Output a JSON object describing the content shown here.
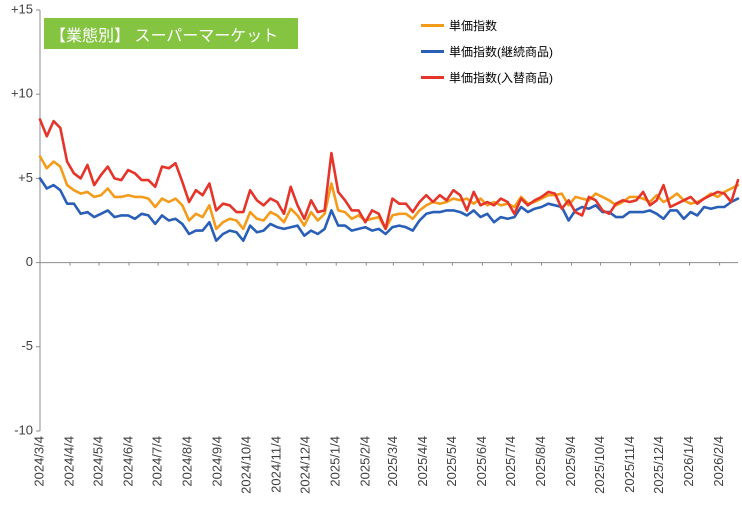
{
  "chart_data": {
    "type": "line",
    "title": "【業態別】 スーパーマーケット",
    "title_box_color": "#84C441",
    "legend": "top-right",
    "grid": false,
    "x_axis_crosses_at": 0,
    "ylim": [
      -10,
      15
    ],
    "y_tick_labels": [
      "+15",
      "+10",
      "+5",
      "0",
      "-5",
      "-10"
    ],
    "xlim": [
      "2024/3/4",
      "2026/2/23"
    ],
    "x_tick_labels": [
      "2024/3/4",
      "2024/4/4",
      "2024/5/4",
      "2024/6/4",
      "2024/7/4",
      "2024/8/4",
      "2024/9/4",
      "2024/10/4",
      "2024/11/4",
      "2024/12/4",
      "2025/1/4",
      "2025/2/4",
      "2025/3/4",
      "2025/4/4",
      "2025/5/4",
      "2025/6/4",
      "2025/7/4",
      "2025/8/4",
      "2025/9/4",
      "2025/10/4",
      "2025/11/4",
      "2025/12/4",
      "2026/1/4",
      "2026/2/4"
    ],
    "x": [
      "2024/3/4",
      "2024/3/11",
      "2024/3/18",
      "2024/3/25",
      "2024/4/1",
      "2024/4/8",
      "2024/4/15",
      "2024/4/22",
      "2024/4/29",
      "2024/5/6",
      "2024/5/13",
      "2024/5/20",
      "2024/5/27",
      "2024/6/3",
      "2024/6/10",
      "2024/6/17",
      "2024/6/24",
      "2024/7/1",
      "2024/7/8",
      "2024/7/15",
      "2024/7/22",
      "2024/7/29",
      "2024/8/5",
      "2024/8/12",
      "2024/8/19",
      "2024/8/26",
      "2024/9/2",
      "2024/9/9",
      "2024/9/16",
      "2024/9/23",
      "2024/9/30",
      "2024/10/7",
      "2024/10/14",
      "2024/10/21",
      "2024/10/28",
      "2024/11/4",
      "2024/11/11",
      "2024/11/18",
      "2024/11/25",
      "2024/12/2",
      "2024/12/9",
      "2024/12/16",
      "2024/12/23",
      "2024/12/30",
      "2025/1/6",
      "2025/1/13",
      "2025/1/20",
      "2025/1/27",
      "2025/2/3",
      "2025/2/10",
      "2025/2/17",
      "2025/2/24",
      "2025/3/3",
      "2025/3/10",
      "2025/3/17",
      "2025/3/24",
      "2025/3/31",
      "2025/4/7",
      "2025/4/14",
      "2025/4/21",
      "2025/4/28",
      "2025/5/5",
      "2025/5/12",
      "2025/5/19",
      "2025/5/26",
      "2025/6/2",
      "2025/6/9",
      "2025/6/16",
      "2025/6/23",
      "2025/6/30",
      "2025/7/7",
      "2025/7/14",
      "2025/7/21",
      "2025/7/28",
      "2025/8/4",
      "2025/8/11",
      "2025/8/18",
      "2025/8/25",
      "2025/9/1",
      "2025/9/8",
      "2025/9/15",
      "2025/9/22",
      "2025/9/29",
      "2025/10/6",
      "2025/10/13",
      "2025/10/20",
      "2025/10/27",
      "2025/11/3",
      "2025/11/10",
      "2025/11/17",
      "2025/11/24",
      "2025/12/1",
      "2025/12/8",
      "2025/12/15",
      "2025/12/22",
      "2025/12/29",
      "2026/1/5",
      "2026/1/12",
      "2026/1/19",
      "2026/1/26",
      "2026/2/2",
      "2026/2/9",
      "2026/2/16",
      "2026/2/23"
    ],
    "series": [
      {
        "name": "単価指数",
        "color": "#F39C1B",
        "values": [
          6.3,
          5.6,
          6.0,
          5.7,
          4.6,
          4.3,
          4.1,
          4.2,
          3.9,
          4.0,
          4.4,
          3.9,
          3.9,
          4.0,
          3.9,
          3.9,
          3.8,
          3.3,
          3.8,
          3.6,
          3.8,
          3.4,
          2.5,
          2.9,
          2.7,
          3.4,
          2.0,
          2.4,
          2.6,
          2.5,
          2.0,
          3.0,
          2.6,
          2.5,
          3.0,
          2.8,
          2.4,
          3.2,
          2.8,
          2.2,
          3.0,
          2.5,
          2.9,
          4.7,
          3.1,
          3.0,
          2.6,
          2.8,
          2.5,
          2.6,
          2.7,
          2.0,
          2.8,
          2.9,
          2.9,
          2.6,
          3.1,
          3.4,
          3.6,
          3.5,
          3.6,
          3.8,
          3.7,
          3.8,
          3.5,
          3.8,
          3.4,
          3.6,
          3.4,
          3.5,
          3.3,
          3.9,
          3.5,
          3.6,
          3.8,
          4.0,
          4.0,
          4.1,
          3.4,
          3.9,
          3.8,
          3.7,
          4.1,
          3.9,
          3.7,
          3.4,
          3.6,
          3.9,
          3.9,
          3.8,
          3.6,
          4.0,
          3.6,
          3.8,
          4.1,
          3.7,
          3.5,
          3.6,
          3.8,
          4.1,
          3.9,
          4.2,
          4.4,
          4.6
        ]
      },
      {
        "name": "単価指数(継続商品)",
        "color": "#2A5FB8",
        "values": [
          5.0,
          4.4,
          4.6,
          4.3,
          3.5,
          3.5,
          2.9,
          3.0,
          2.7,
          2.9,
          3.1,
          2.7,
          2.8,
          2.8,
          2.6,
          2.9,
          2.8,
          2.3,
          2.8,
          2.5,
          2.6,
          2.3,
          1.7,
          1.9,
          1.9,
          2.4,
          1.3,
          1.7,
          1.9,
          1.8,
          1.3,
          2.2,
          1.8,
          1.9,
          2.3,
          2.1,
          2.0,
          2.1,
          2.2,
          1.6,
          1.9,
          1.7,
          2.0,
          3.1,
          2.2,
          2.2,
          1.9,
          2.0,
          2.1,
          1.9,
          2.0,
          1.7,
          2.1,
          2.2,
          2.1,
          1.9,
          2.5,
          2.9,
          3.0,
          3.0,
          3.1,
          3.1,
          3.0,
          2.8,
          3.1,
          2.7,
          2.9,
          2.4,
          2.7,
          2.6,
          2.7,
          3.3,
          3.0,
          3.2,
          3.3,
          3.5,
          3.4,
          3.3,
          2.5,
          3.1,
          3.3,
          3.2,
          3.4,
          3.0,
          3.0,
          2.7,
          2.7,
          3.0,
          3.0,
          3.0,
          3.1,
          2.9,
          2.6,
          3.1,
          3.1,
          2.6,
          3.0,
          2.8,
          3.3,
          3.2,
          3.3,
          3.3,
          3.6,
          3.8
        ]
      },
      {
        "name": "単価指数(入替商品)",
        "color": "#E5352B",
        "values": [
          8.5,
          7.5,
          8.4,
          8.0,
          6.0,
          5.3,
          5.0,
          5.8,
          4.6,
          5.2,
          5.7,
          5.0,
          4.9,
          5.5,
          5.3,
          4.9,
          4.9,
          4.5,
          5.7,
          5.6,
          5.9,
          4.8,
          3.6,
          4.3,
          4.0,
          4.7,
          3.1,
          3.5,
          3.4,
          3.0,
          3.0,
          4.3,
          3.7,
          3.4,
          3.8,
          3.6,
          2.9,
          4.5,
          3.4,
          2.6,
          3.7,
          3.0,
          3.1,
          6.5,
          4.2,
          3.7,
          3.1,
          3.1,
          2.4,
          3.1,
          2.9,
          2.0,
          3.8,
          3.5,
          3.5,
          3.0,
          3.6,
          4.0,
          3.6,
          4.0,
          3.7,
          4.3,
          4.0,
          3.1,
          4.2,
          3.4,
          3.6,
          3.4,
          3.8,
          3.6,
          2.9,
          3.8,
          3.4,
          3.7,
          3.9,
          4.2,
          4.1,
          3.2,
          3.7,
          3.0,
          2.8,
          3.9,
          3.7,
          3.1,
          2.9,
          3.5,
          3.7,
          3.6,
          3.7,
          4.2,
          3.4,
          3.7,
          4.6,
          3.3,
          3.5,
          3.7,
          3.9,
          3.5,
          3.8,
          4.0,
          4.2,
          4.1,
          3.6,
          4.9
        ]
      }
    ]
  }
}
